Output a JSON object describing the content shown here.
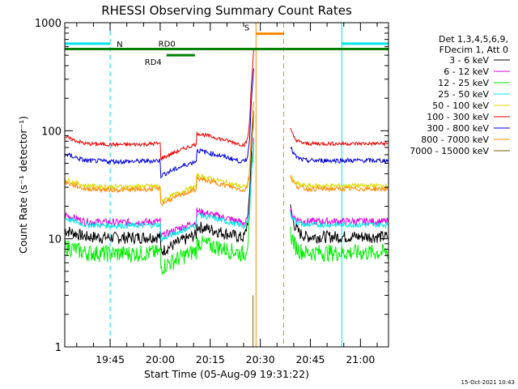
{
  "chart_data": {
    "type": "line",
    "title": "RHESSI Observing Summary Count Rates",
    "xlabel": "Start Time (05-Aug-09 19:31:22)",
    "ylabel": "Count Rate (s⁻¹ detector⁻¹)",
    "footer": "15-Oct-2021 10:43",
    "x_start_min": 0,
    "x_end_min": 97,
    "y_scale": "log",
    "ylim": [
      1,
      1000
    ],
    "y_ticks": [
      {
        "value": 1,
        "label": "1"
      },
      {
        "value": 10,
        "label": "10"
      },
      {
        "value": 100,
        "label": "100"
      },
      {
        "value": 1000,
        "label": "1000"
      }
    ],
    "x_ticks": [
      {
        "value": 13.6,
        "label": "19:45"
      },
      {
        "value": 28.6,
        "label": "20:00"
      },
      {
        "value": 43.6,
        "label": "20:15"
      },
      {
        "value": 58.6,
        "label": "20:30"
      },
      {
        "value": 73.6,
        "label": "20:45"
      },
      {
        "value": 88.6,
        "label": "21:00"
      }
    ],
    "legend_header": [
      "Det 1,3,4,5,6,9,",
      "FDecim 1, Att 0"
    ],
    "legend_position": "right",
    "series": [
      {
        "name": "3 - 6 keV",
        "color": "#000000",
        "base": 10.5,
        "flare": 1.8,
        "noise": 0.13
      },
      {
        "name": "6 - 12 keV",
        "color": "#e000e0",
        "base": 14.5,
        "flare": 1.2,
        "noise": 0.08
      },
      {
        "name": "12 - 25 keV",
        "color": "#00ee00",
        "base": 7.5,
        "flare": 1.5,
        "noise": 0.18
      },
      {
        "name": "25 - 50 keV",
        "color": "#00e5e5",
        "base": 13.5,
        "flare": 1.2,
        "noise": 0.06
      },
      {
        "name": "50 - 100 keV",
        "color": "#d8d800",
        "base": 31,
        "flare": 1.15,
        "noise": 0.05
      },
      {
        "name": "100 - 300 keV",
        "color": "#ee0000",
        "base": 76,
        "flare": 1.3,
        "noise": 0.04
      },
      {
        "name": "300 - 800 keV",
        "color": "#0000dd",
        "base": 53,
        "flare": 1.3,
        "noise": 0.05
      },
      {
        "name": "800 - 7000 keV",
        "color": "#ff8800",
        "base": 29,
        "flare": 1.25,
        "noise": 0.05
      },
      {
        "name": "7000 - 15000 keV",
        "color": "#806000",
        "base": 0,
        "flare": 1,
        "noise": 0
      }
    ],
    "data_gap_min": [
      56.8,
      67.5
    ],
    "attenuator_events": [
      {
        "label": "N",
        "start": 0,
        "end": 13.6,
        "level": 640,
        "color": "#00e5e5"
      },
      {
        "label": "",
        "start": 83,
        "end": 97,
        "level": 640,
        "color": "#00e5e5"
      },
      {
        "label": "S",
        "start": 57.3,
        "end": 65.6,
        "level": 790,
        "color": "#ff8800"
      },
      {
        "label": "RD0",
        "start": 0,
        "end": 97,
        "level": 570,
        "color": "#008000"
      },
      {
        "label": "RD4",
        "start": 30.5,
        "end": 39,
        "level": 500,
        "color": "#008000"
      }
    ],
    "event_lines": [
      {
        "x": 13.6,
        "color": "#00e5e5",
        "dash": true
      },
      {
        "x": 83,
        "color": "#00e5e5",
        "dash": false
      },
      {
        "x": 97,
        "color": "#00e5e5",
        "dash": true
      },
      {
        "x": 57.3,
        "color": "#ff8800",
        "dash": false
      },
      {
        "x": 65.6,
        "color": "#ff8800",
        "dash": true
      }
    ]
  }
}
